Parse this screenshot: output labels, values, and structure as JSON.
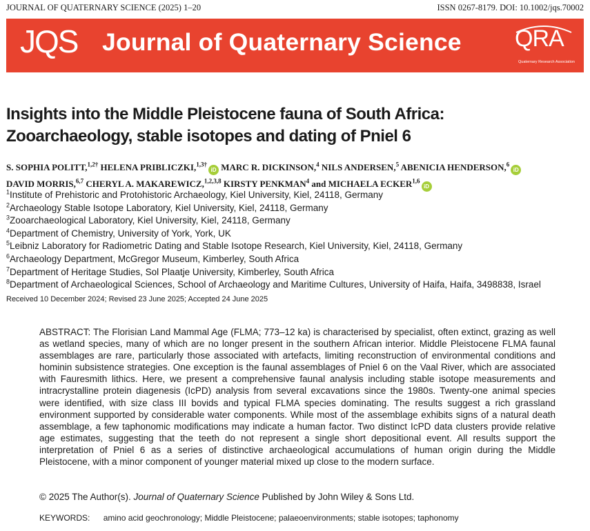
{
  "header": {
    "journal_line": "JOURNAL OF QUATERNARY SCIENCE (2025) 1–20",
    "issn_doi": "ISSN 0267-8179. DOI: 10.1002/jqs.70002"
  },
  "banner": {
    "abbrev": "JQS",
    "journal_name": "Journal of Quaternary Science",
    "qra_logo": "QRA",
    "qra_sub": "Quaternary Research Association",
    "color": "#e8432f"
  },
  "title": {
    "line1": "Insights into the Middle Pleistocene fauna of South Africa:",
    "line2": "Zooarchaeology, stable isotopes and dating of Pniel 6"
  },
  "authors": [
    {
      "name": "S. SOPHIA POLITT,",
      "sup": "1,2†",
      "orcid": false
    },
    {
      "name": "HELENA PRIBLICZKI,",
      "sup": "1,3†",
      "orcid": true
    },
    {
      "name": "MARC R. DICKINSON,",
      "sup": "4",
      "orcid": false
    },
    {
      "name": "NILS ANDERSEN,",
      "sup": "5",
      "orcid": false
    },
    {
      "name": "ABENICIA HENDERSON,",
      "sup": "6",
      "orcid": true
    },
    {
      "name": "DAVID MORRIS,",
      "sup": "6,7",
      "orcid": false
    },
    {
      "name": "CHERYL A. MAKAREWICZ,",
      "sup": "1,2,3,8",
      "orcid": false
    },
    {
      "name": "KIRSTY PENKMAN",
      "sup": "4",
      "orcid": false
    },
    {
      "name": "and MICHAELA ECKER",
      "sup": "1,6",
      "orcid": true
    }
  ],
  "orcid_label": "iD",
  "affiliations": [
    {
      "num": "1",
      "text": "Institute of Prehistoric and Protohistoric Archaeology, Kiel University, Kiel, 24118, Germany"
    },
    {
      "num": "2",
      "text": "Archaeology Stable Isotope Laboratory, Kiel University, Kiel, 24118, Germany"
    },
    {
      "num": "3",
      "text": "Zooarchaeological Laboratory, Kiel University, Kiel, 24118, Germany"
    },
    {
      "num": "4",
      "text": "Department of Chemistry, University of York, York, UK"
    },
    {
      "num": "5",
      "text": "Leibniz Laboratory for Radiometric Dating and Stable Isotope Research, Kiel University, Kiel, 24118, Germany"
    },
    {
      "num": "6",
      "text": "Archaeology Department, McGregor Museum, Kimberley, South Africa"
    },
    {
      "num": "7",
      "text": "Department of Heritage Studies, Sol Plaatje University, Kimberley, South Africa"
    },
    {
      "num": "8",
      "text": "Department of Archaeological Sciences, School of Archaeology and Maritime Cultures, University of Haifa, Haifa, 3498838, Israel"
    }
  ],
  "received": "Received 10 December 2024; Revised 23 June 2025; Accepted 24 June 2025",
  "abstract": "ABSTRACT:  The Florisian Land Mammal Age (FLMA; 773–12 ka) is characterised by specialist, often extinct, grazing as well as wetland species, many of which are no longer present in the southern African interior. Middle Pleistocene FLMA faunal assemblages are rare, particularly those associated with artefacts, limiting reconstruction of environmental conditions and hominin subsistence strategies. One exception is the faunal assemblages of Pniel 6 on the Vaal River, which are associated with Fauresmith lithics. Here, we present a comprehensive faunal analysis including stable isotope measurements and intracrystalline protein diagenesis (IcPD) analysis from several excavations since the 1980s. Twenty-one animal species were identified, with size class III bovids and typical FLMA species dominating. The results suggest a rich grassland environment supported by considerable water components. While most of the assemblage exhibits signs of a natural death assemblage, a few taphonomic modifications may indicate a human factor. Two distinct IcPD data clusters provide relative age estimates, suggesting that the teeth do not represent a single short depositional event. All results support the interpretation of Pniel 6 as a series of distinctive archaeological accumulations of human origin during the Middle Pleistocene, with a minor component of younger material mixed up close to the modern surface.",
  "copyright": {
    "prefix": "© 2025 The Author(s). ",
    "journal": "Journal of Quaternary Science",
    "suffix": " Published by John Wiley & Sons Ltd."
  },
  "keywords": {
    "label": "KEYWORDS:",
    "text": "amino acid geochronology; Middle Pleistocene; palaeoenvironments; stable isotopes; taphonomy"
  }
}
